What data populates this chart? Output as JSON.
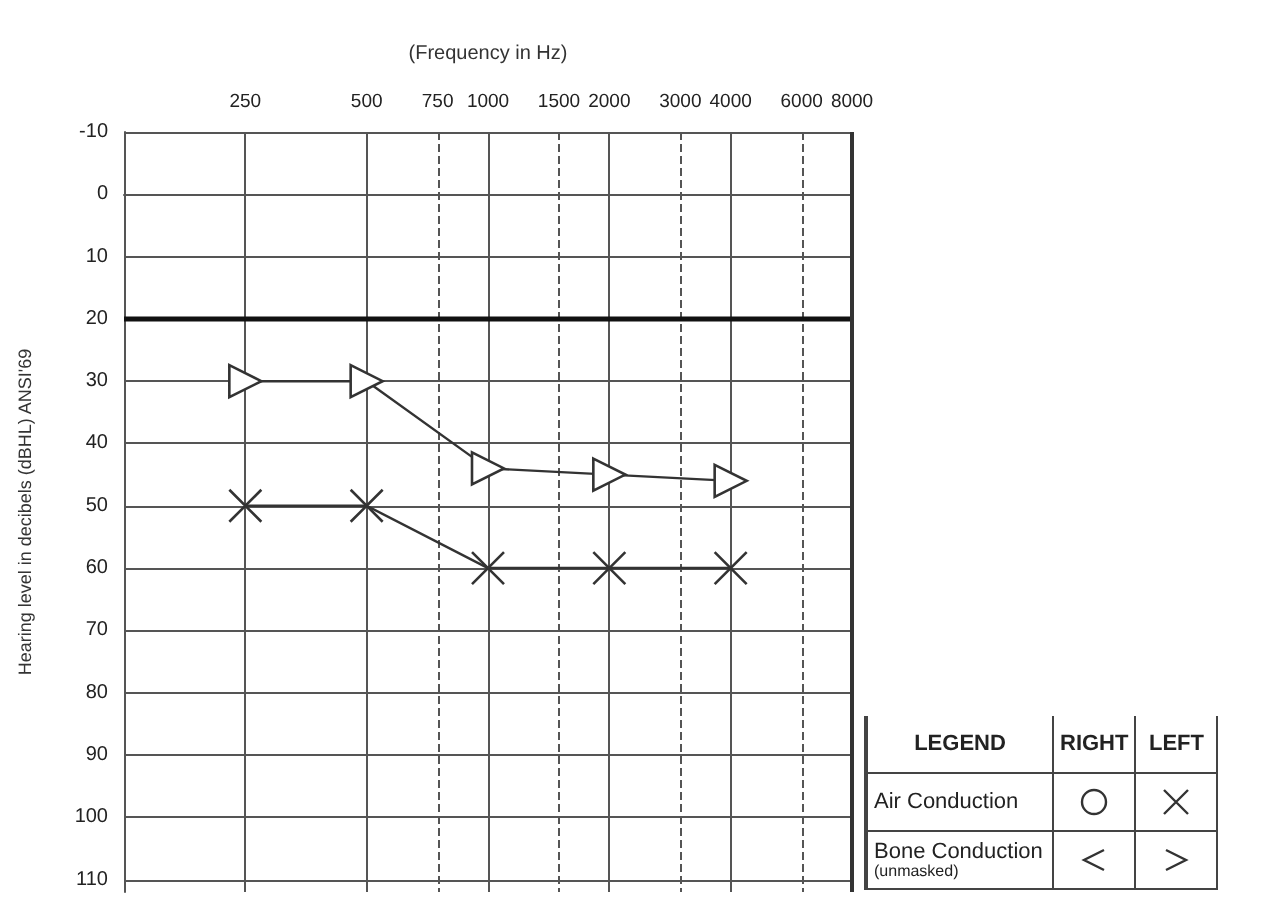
{
  "chart_data": {
    "type": "line",
    "xlabel": "(Frequency in Hz)",
    "ylabel": "Hearing level in decibels (dBHL) ANSI'69",
    "log": "x",
    "xlim": [
      125,
      8000
    ],
    "xticks": [
      250,
      500,
      750,
      1000,
      1500,
      2000,
      3000,
      4000,
      6000,
      8000
    ],
    "ylim": [
      112,
      -10
    ],
    "yticks": [
      -10,
      0,
      10,
      20,
      30,
      40,
      50,
      60,
      70,
      80,
      90,
      100,
      110
    ],
    "x": [
      250,
      500,
      1000,
      2000,
      4000
    ],
    "series": [
      {
        "color": "#333333",
        "marker": "cross",
        "values": [
          50,
          50,
          60,
          60,
          60
        ]
      },
      {
        "color": "#333333",
        "marker": "triangle",
        "values": [
          30,
          30,
          44,
          45,
          46
        ]
      }
    ],
    "ref_lines": [
      {
        "axis": "y",
        "value": 20,
        "color": "#111111"
      }
    ],
    "grid": true,
    "line_style": "solid",
    "annotations": [
      "LEGEND",
      "RIGHT",
      "LEFT",
      "Air Conduction",
      "Bone Conduction",
      "(unmasked)"
    ]
  }
}
